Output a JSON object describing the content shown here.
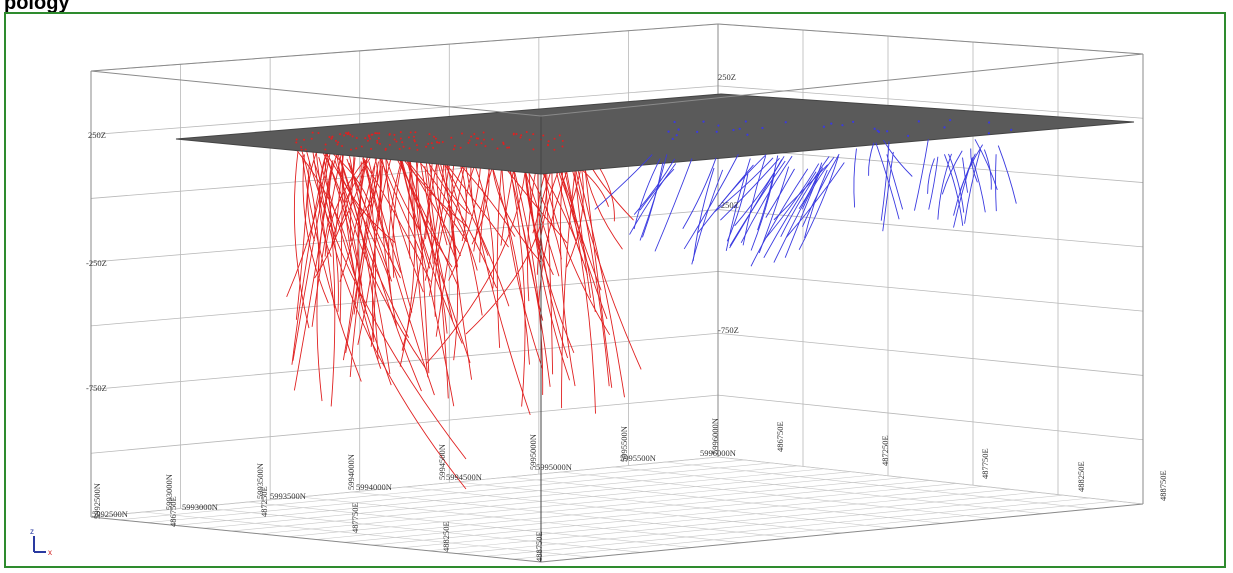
{
  "window": {
    "title": "pology"
  },
  "axes": {
    "z_labels": [
      "250Z",
      "-250Z",
      "-750Z"
    ],
    "northing_labels": [
      "5992500N",
      "5993000N",
      "5993500N",
      "5994000N",
      "5994500N",
      "5995000N",
      "5995500N",
      "5996000N"
    ],
    "easting_labels": [
      "486750E",
      "487250E",
      "487750E",
      "488250E",
      "488750E"
    ]
  },
  "gizmo": {
    "z": "z",
    "x": "x"
  },
  "colors": {
    "frame": "#2e8b2e",
    "surface": "#5a5a5a",
    "drillholes_west": "#e02020",
    "drillholes_east": "#3a3ae0",
    "grid": "#b8b8b8"
  }
}
